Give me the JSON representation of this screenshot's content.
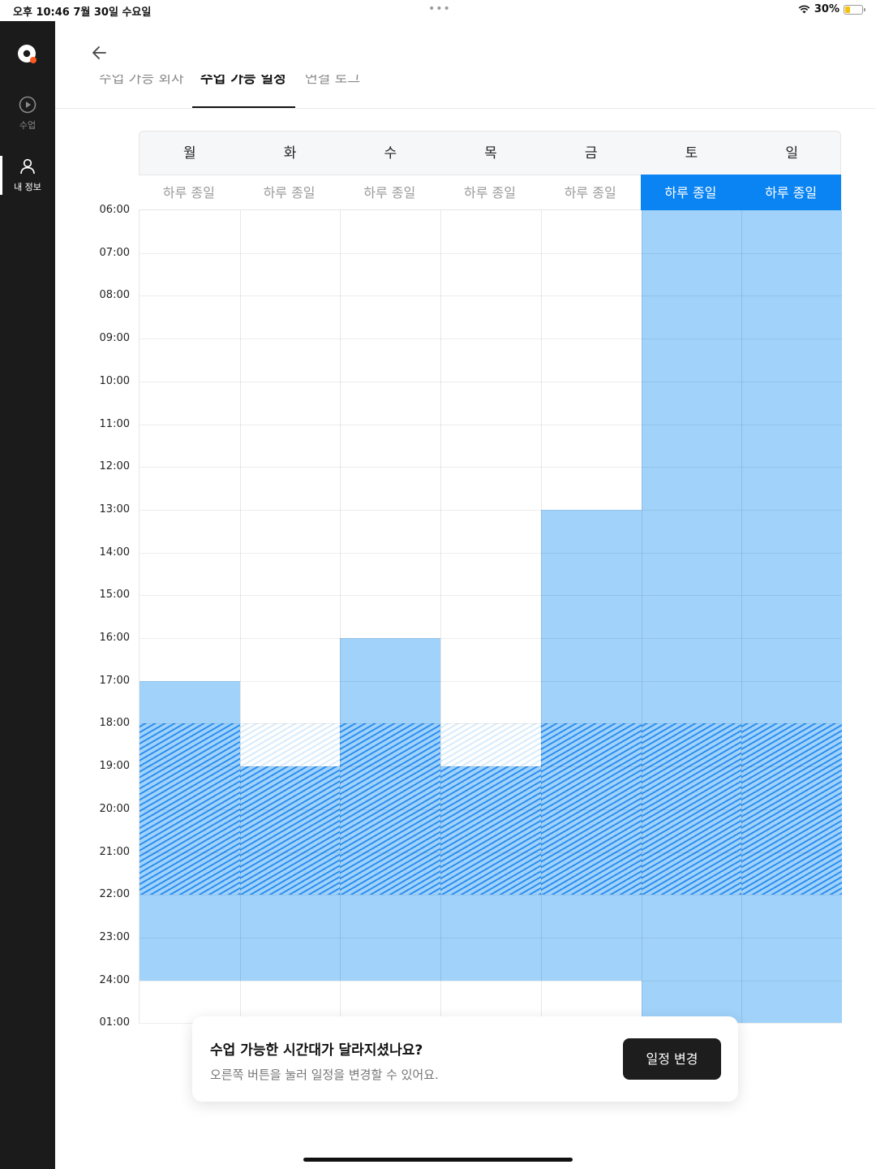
{
  "status_bar": {
    "time_date": "오후 10:46   7월 30일 수요일",
    "dots": "•••",
    "battery": "30%",
    "battery_level": 0.3
  },
  "sidebar": {
    "items": [
      {
        "label": "수업",
        "icon": "play-circle-icon",
        "active": false
      },
      {
        "label": "내 정보",
        "icon": "person-icon",
        "active": true
      }
    ]
  },
  "header": {
    "back_icon": "arrow-left-icon",
    "tabs": [
      {
        "label": "수업 가능 회차",
        "active": false
      },
      {
        "label": "수업 가능 일정",
        "active": true
      },
      {
        "label": "연결 로그",
        "active": false
      }
    ]
  },
  "schedule": {
    "days": [
      "월",
      "화",
      "수",
      "목",
      "금",
      "토",
      "일"
    ],
    "all_day_label": "하루 종일",
    "all_day_selected": [
      false,
      false,
      false,
      false,
      false,
      true,
      true
    ],
    "times": [
      "06:00",
      "07:00",
      "08:00",
      "09:00",
      "10:00",
      "11:00",
      "12:00",
      "13:00",
      "14:00",
      "15:00",
      "16:00",
      "17:00",
      "18:00",
      "19:00",
      "20:00",
      "21:00",
      "22:00",
      "23:00",
      "24:00",
      "01:00"
    ],
    "available": [
      {
        "day": 0,
        "from": "17:00",
        "to": "24:00"
      },
      {
        "day": 1,
        "from": "19:00",
        "to": "24:00"
      },
      {
        "day": 2,
        "from": "16:00",
        "to": "24:00"
      },
      {
        "day": 3,
        "from": "19:00",
        "to": "24:00"
      },
      {
        "day": 4,
        "from": "13:00",
        "to": "24:00"
      },
      {
        "day": 5,
        "from": "06:00",
        "to": "01:00"
      },
      {
        "day": 6,
        "from": "06:00",
        "to": "01:00"
      }
    ],
    "peak_hours": {
      "from": "18:00",
      "to": "22:00"
    },
    "colors": {
      "available": "#a0d2fa",
      "selected": "#0a84f2",
      "hatch": "#2d8ff0"
    }
  },
  "notice": {
    "title": "수업 가능한 시간대가 달라지셨나요?",
    "subtitle": "오른쪽 버튼을 눌러 일정을 변경할 수 있어요.",
    "button": "일정 변경"
  }
}
